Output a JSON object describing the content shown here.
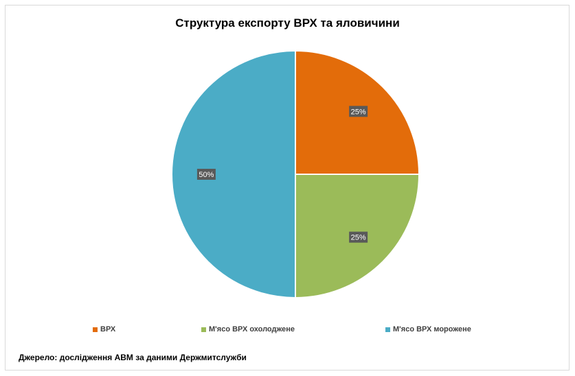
{
  "chart_data": {
    "type": "pie",
    "title": "Структура експорту ВРХ та яловичини",
    "categories": [
      "ВРХ",
      "М'ясо ВРХ охолоджене",
      "М'ясо ВРХ морожене"
    ],
    "values": [
      25,
      25,
      50
    ],
    "data_labels": [
      "25%",
      "25%",
      "50%"
    ],
    "colors": [
      "#E36C0A",
      "#9BBB59",
      "#4BACC6"
    ],
    "start_angle_deg": 0,
    "direction": "clockwise",
    "legend_position": "bottom",
    "label_box_color": "#595959",
    "label_text_color": "#ffffff"
  },
  "source": "Джерело: дослідження АВМ за даними Держмитслужби"
}
